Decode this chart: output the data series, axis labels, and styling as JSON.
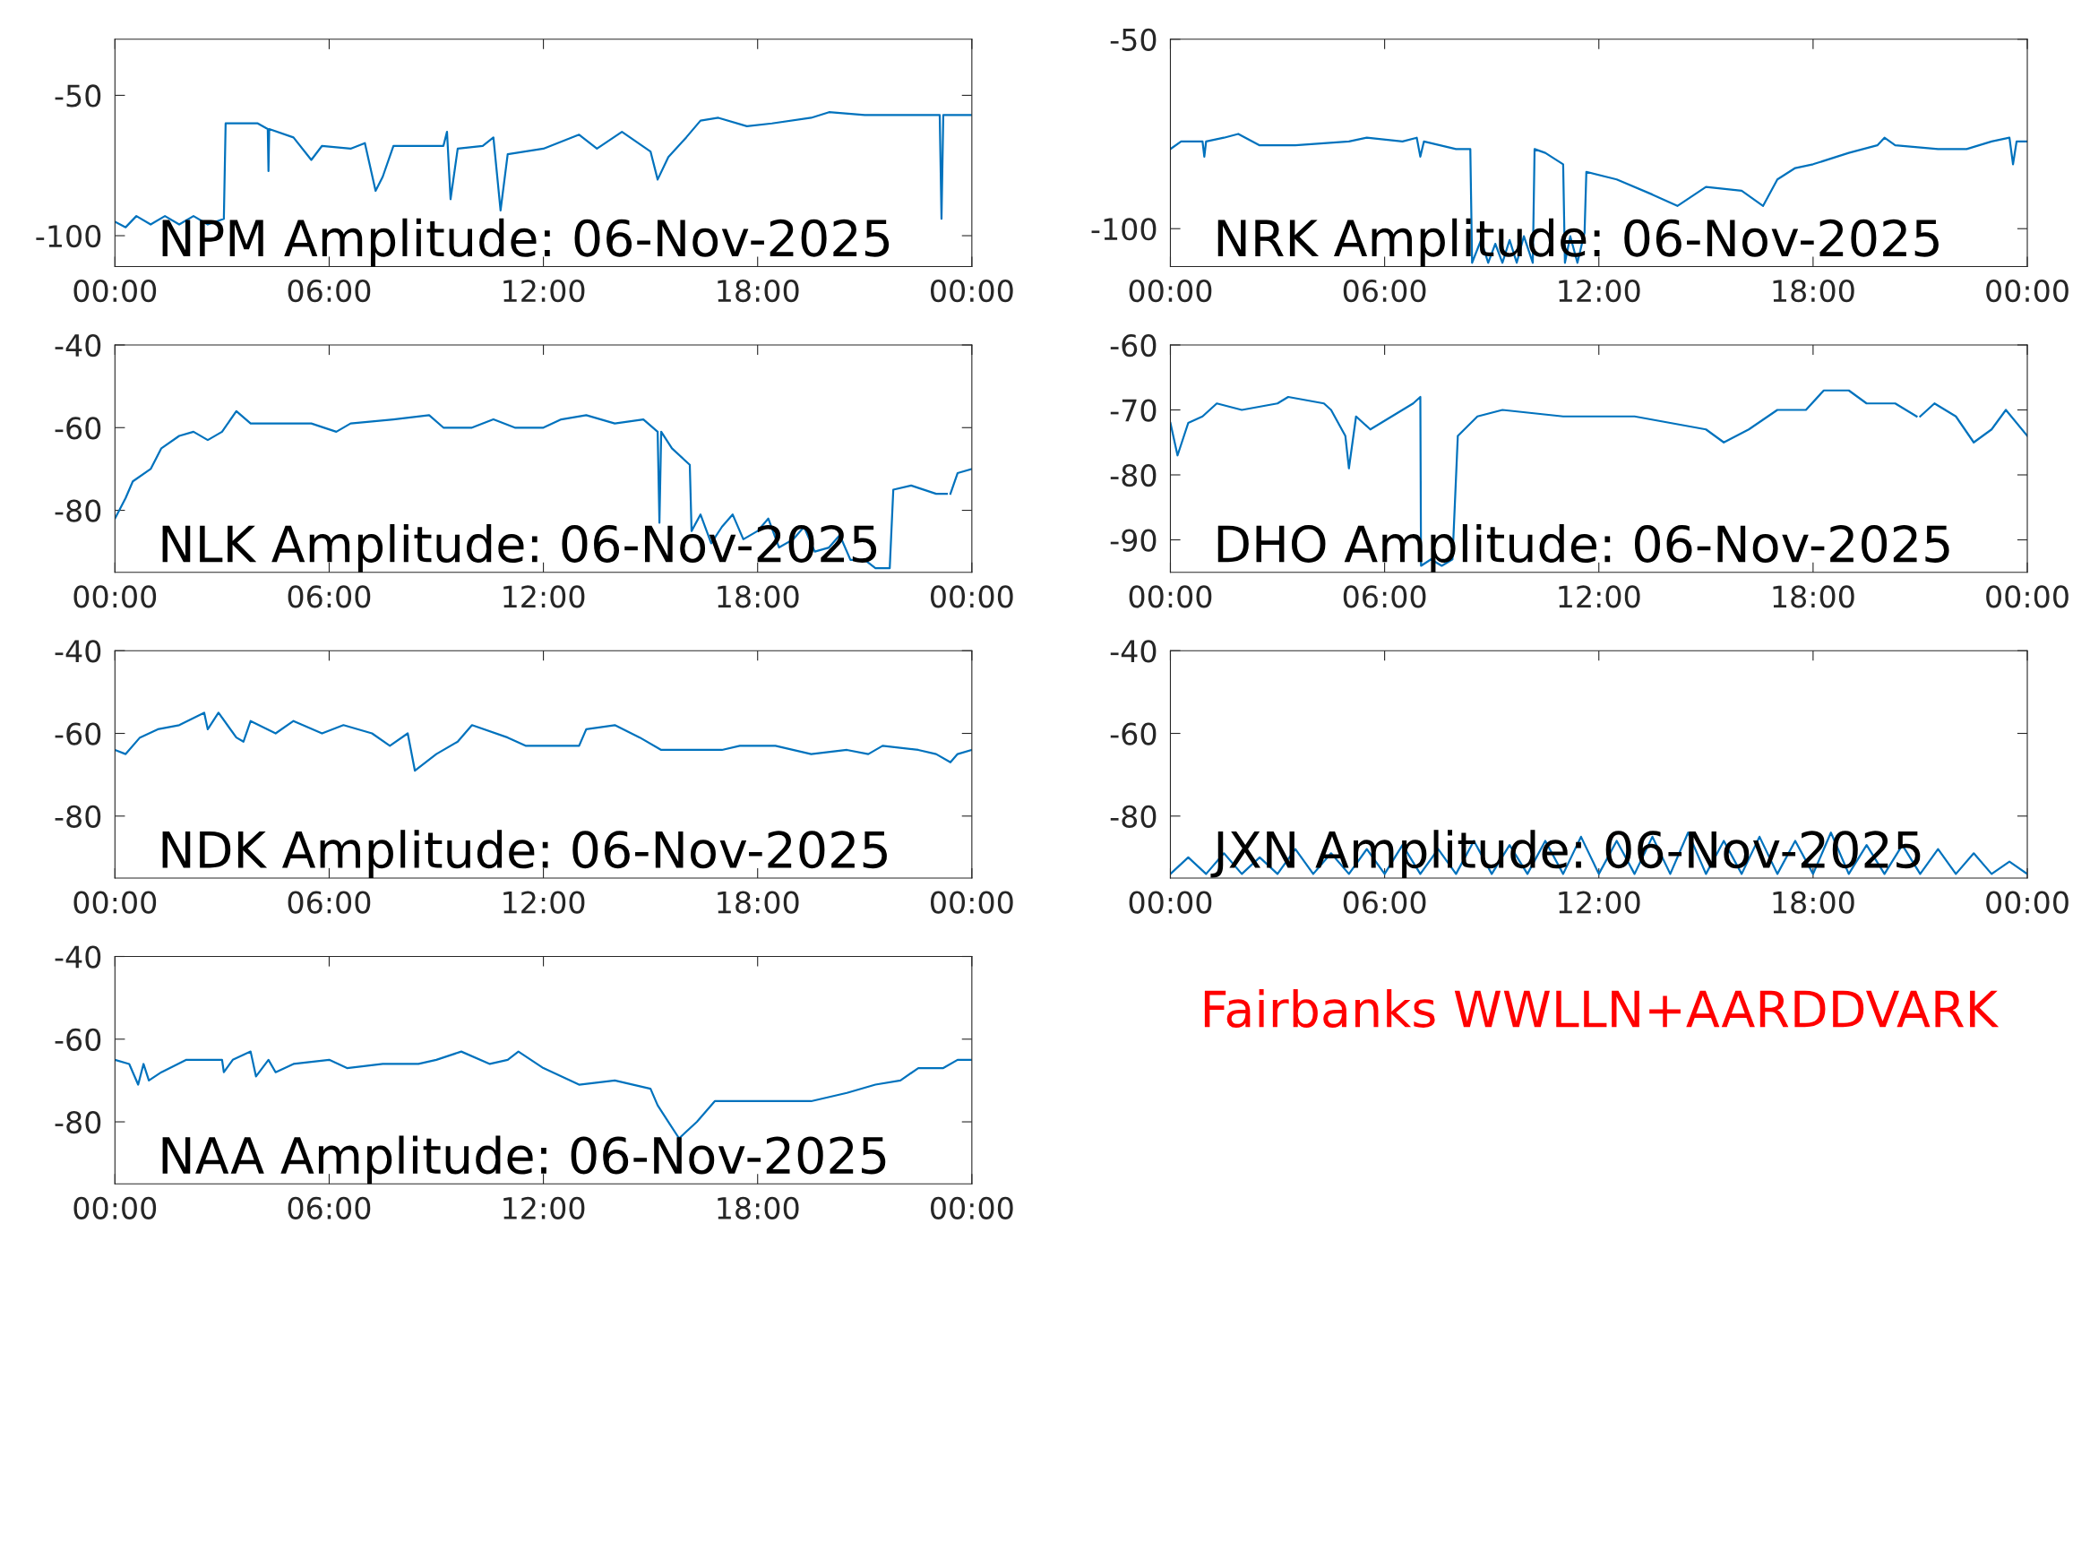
{
  "chart_data": [
    {
      "type": "line",
      "title": "NPM Amplitude: 06-Nov-2025",
      "x": [
        0,
        0.3,
        0.6,
        1,
        1.4,
        1.8,
        2.2,
        2.6,
        3.05,
        3.1,
        4.0,
        4.28,
        4.3,
        4.32,
        5.0,
        5.5,
        5.8,
        6.6,
        7.0,
        7.3,
        7.5,
        7.8,
        8.5,
        9.2,
        9.3,
        9.4,
        9.6,
        10.3,
        10.6,
        10.8,
        11.0,
        12,
        13,
        13.5,
        14.2,
        15,
        15.2,
        15.5,
        16,
        16.4,
        16.9,
        17.7,
        18.4,
        19.5,
        20,
        21,
        22,
        23.1,
        23.15,
        23.2,
        24
      ],
      "series": [
        {
          "color": "#0072bd",
          "values": [
            -95,
            -97,
            -93,
            -96,
            -93,
            -96,
            -93,
            -96,
            -94,
            -60,
            -60,
            -62,
            -77,
            -62,
            -65,
            -73,
            -68,
            -69,
            -67,
            -84,
            -79,
            -68,
            -68,
            -68,
            -63,
            -87,
            -69,
            -68,
            -65,
            -91,
            -71,
            -69,
            -64,
            -69,
            -63,
            -70,
            -80,
            -72,
            -65,
            -59,
            -58,
            -61,
            -60,
            -58,
            -56,
            -57,
            -57,
            -57,
            -94,
            -57,
            -57
          ]
        }
      ],
      "xlim": [
        0,
        24
      ],
      "xticks": [
        {
          "value": 0,
          "label": "00:00"
        },
        {
          "value": 6,
          "label": "06:00"
        },
        {
          "value": 12,
          "label": "12:00"
        },
        {
          "value": 18,
          "label": "18:00"
        },
        {
          "value": 24,
          "label": "00:00"
        }
      ],
      "ylim": [
        -111,
        -30
      ],
      "yticks": [
        -100,
        -50
      ]
    },
    {
      "type": "line",
      "title": "NRK Amplitude: 06-Nov-2025",
      "x": [
        0,
        0.3,
        0.9,
        0.95,
        1.0,
        1.5,
        1.9,
        2.5,
        3.5,
        5,
        5.5,
        6.5,
        6.9,
        7.0,
        7.1,
        8,
        8.4,
        8.45,
        8.7,
        8.9,
        9.1,
        9.3,
        9.5,
        9.7,
        9.9,
        10.15,
        10.2,
        10.5,
        11,
        11.05,
        11.2,
        11.4,
        11.6,
        11.65,
        12.5,
        13.5,
        14.2,
        15,
        16,
        16.6,
        17,
        17.5,
        18,
        19,
        19.8,
        20,
        20.3,
        21.5,
        22.3,
        23,
        23.5,
        23.6,
        23.7,
        24
      ],
      "series": [
        {
          "color": "#0072bd",
          "values": [
            -79,
            -77,
            -77,
            -81,
            -77,
            -76,
            -75,
            -78,
            -78,
            -77,
            -76,
            -77,
            -76,
            -81,
            -77,
            -79,
            -79,
            -109,
            -103,
            -109,
            -104,
            -109,
            -103,
            -109,
            -102,
            -109,
            -79,
            -80,
            -83,
            -109,
            -102,
            -109,
            -101,
            -85,
            -87,
            -91,
            -94,
            -89,
            -90,
            -94,
            -87,
            -84,
            -83,
            -80,
            -78,
            -76,
            -78,
            -79,
            -79,
            -77,
            -76,
            -83,
            -77,
            -77
          ]
        }
      ],
      "xlim": [
        0,
        24
      ],
      "xticks": [
        {
          "value": 0,
          "label": "00:00"
        },
        {
          "value": 6,
          "label": "06:00"
        },
        {
          "value": 12,
          "label": "12:00"
        },
        {
          "value": 18,
          "label": "18:00"
        },
        {
          "value": 24,
          "label": "00:00"
        }
      ],
      "ylim": [
        -110,
        -50
      ],
      "yticks": [
        -100,
        -50
      ]
    },
    {
      "type": "line",
      "title": "NLK Amplitude: 06-Nov-2025",
      "x": [
        0,
        0.3,
        0.5,
        1,
        1.3,
        1.8,
        2.2,
        2.6,
        3,
        3.4,
        3.8,
        4.5,
        5.5,
        6.2,
        6.6,
        7.8,
        8.8,
        9.2,
        10,
        10.6,
        11.2,
        12,
        12.5,
        13.2,
        14,
        14.8,
        15.2,
        15.25,
        15.3,
        15.6,
        16.1,
        16.15,
        16.4,
        16.7,
        17,
        17.3,
        17.6,
        18,
        18.3,
        18.6,
        19,
        19.3,
        19.6,
        20,
        20.3,
        20.6,
        21,
        21.3,
        21.7,
        21.8,
        22.3,
        23,
        23.3,
        23.35,
        23.4,
        23.6,
        24
      ],
      "series": [
        {
          "color": "#0072bd",
          "values": [
            -82,
            -77,
            -73,
            -70,
            -65,
            -62,
            -61,
            -63,
            -61,
            -56,
            -59,
            -59,
            -59,
            -61,
            -59,
            -58,
            -57,
            -60,
            -60,
            -58,
            -60,
            -60,
            -58,
            -57,
            -59,
            -58,
            -61,
            -83,
            -61,
            -65,
            -69,
            -85,
            -81,
            -88,
            -84,
            -81,
            -87,
            -85,
            -82,
            -89,
            -87,
            -84,
            -90,
            -89,
            -86,
            -92,
            -92,
            -94,
            -94,
            -75,
            -74,
            -76,
            -76,
            null,
            -76,
            -71,
            -70
          ]
        }
      ],
      "xlim": [
        0,
        24
      ],
      "xticks": [
        {
          "value": 0,
          "label": "00:00"
        },
        {
          "value": 6,
          "label": "06:00"
        },
        {
          "value": 12,
          "label": "12:00"
        },
        {
          "value": 18,
          "label": "18:00"
        },
        {
          "value": 24,
          "label": "00:00"
        }
      ],
      "ylim": [
        -95,
        -40
      ],
      "yticks": [
        -80,
        -60,
        -40
      ]
    },
    {
      "type": "line",
      "title": "DHO Amplitude: 06-Nov-2025",
      "x": [
        0,
        0.2,
        0.5,
        0.9,
        1.3,
        2,
        3,
        3.3,
        4.3,
        4.5,
        4.9,
        5,
        5.2,
        5.6,
        6.2,
        6.8,
        7.0,
        7.02,
        7.3,
        7.6,
        7.9,
        8.05,
        8.6,
        9.3,
        11,
        13,
        14,
        15,
        15.5,
        16.2,
        17,
        17.8,
        18.3,
        19,
        19.5,
        20.3,
        20.9,
        20.95,
        21.0,
        21.4,
        22,
        22.5,
        23,
        23.4,
        24
      ],
      "series": [
        {
          "color": "#0072bd",
          "values": [
            -72,
            -77,
            -72,
            -71,
            -69,
            -70,
            -69,
            -68,
            -69,
            -70,
            -74,
            -79,
            -71,
            -73,
            -71,
            -69,
            -68,
            -94,
            -93,
            -94,
            -93,
            -74,
            -71,
            -70,
            -71,
            -71,
            -72,
            -73,
            -75,
            -73,
            -70,
            -70,
            -67,
            -67,
            -69,
            -69,
            -71,
            null,
            -71,
            -69,
            -71,
            -75,
            -73,
            -70,
            -74
          ]
        }
      ],
      "xlim": [
        0,
        24
      ],
      "xticks": [
        {
          "value": 0,
          "label": "00:00"
        },
        {
          "value": 6,
          "label": "06:00"
        },
        {
          "value": 12,
          "label": "12:00"
        },
        {
          "value": 18,
          "label": "18:00"
        },
        {
          "value": 24,
          "label": "00:00"
        }
      ],
      "ylim": [
        -95,
        -60
      ],
      "yticks": [
        -90,
        -80,
        -70,
        -60
      ]
    },
    {
      "type": "line",
      "title": "NDK Amplitude: 06-Nov-2025",
      "x": [
        0,
        0.3,
        0.7,
        1.2,
        1.8,
        2.5,
        2.6,
        2.9,
        3.4,
        3.6,
        3.8,
        4.5,
        5,
        5.8,
        6.4,
        7.2,
        7.7,
        8.2,
        8.4,
        9,
        9.6,
        10,
        11,
        11.5,
        13,
        13.2,
        14,
        14.7,
        15.3,
        16,
        17,
        17.5,
        18.5,
        19.5,
        20.5,
        21.1,
        21.5,
        22.5,
        23,
        23.4,
        23.6,
        24
      ],
      "series": [
        {
          "color": "#0072bd",
          "values": [
            -64,
            -65,
            -61,
            -59,
            -58,
            -55,
            -59,
            -55,
            -61,
            -62,
            -57,
            -60,
            -57,
            -60,
            -58,
            -60,
            -63,
            -60,
            -69,
            -65,
            -62,
            -58,
            -61,
            -63,
            -63,
            -59,
            -58,
            -61,
            -64,
            -64,
            -64,
            -63,
            -63,
            -65,
            -64,
            -65,
            -63,
            -64,
            -65,
            -67,
            -65,
            -64
          ]
        }
      ],
      "xlim": [
        0,
        24
      ],
      "xticks": [
        {
          "value": 0,
          "label": "00:00"
        },
        {
          "value": 6,
          "label": "06:00"
        },
        {
          "value": 12,
          "label": "12:00"
        },
        {
          "value": 18,
          "label": "18:00"
        },
        {
          "value": 24,
          "label": "00:00"
        }
      ],
      "ylim": [
        -95,
        -40
      ],
      "yticks": [
        -80,
        -60,
        -40
      ]
    },
    {
      "type": "line",
      "title": "JXN Amplitude: 06-Nov-2025",
      "x": [
        0,
        0.5,
        1,
        1.5,
        2,
        2.5,
        3,
        3.5,
        4,
        4.5,
        5,
        5.5,
        6,
        6.5,
        7,
        7.5,
        8,
        8.5,
        9,
        9.5,
        10,
        10.5,
        11,
        11.5,
        12,
        12.5,
        13,
        13.5,
        14,
        14.5,
        15,
        15.5,
        16,
        16.5,
        17,
        17.5,
        18,
        18.5,
        19,
        19.5,
        20,
        20.5,
        21,
        21.5,
        22,
        22.5,
        23,
        23.5,
        24
      ],
      "series": [
        {
          "color": "#0072bd",
          "values": [
            -94,
            -90,
            -94,
            -89,
            -94,
            -90,
            -94,
            -88,
            -94,
            -89,
            -94,
            -88,
            -94,
            -87,
            -94,
            -88,
            -94,
            -86,
            -94,
            -87,
            -94,
            -86,
            -94,
            -85,
            -94,
            -86,
            -94,
            -85,
            -94,
            -84,
            -94,
            -86,
            -94,
            -85,
            -94,
            -86,
            -94,
            -84,
            -94,
            -87,
            -94,
            -87,
            -94,
            -88,
            -94,
            -89,
            -94,
            -91,
            -94
          ]
        }
      ],
      "xlim": [
        0,
        24
      ],
      "xticks": [
        {
          "value": 0,
          "label": "00:00"
        },
        {
          "value": 6,
          "label": "06:00"
        },
        {
          "value": 12,
          "label": "12:00"
        },
        {
          "value": 18,
          "label": "18:00"
        },
        {
          "value": 24,
          "label": "00:00"
        }
      ],
      "ylim": [
        -95,
        -40
      ],
      "yticks": [
        -80,
        -60,
        -40
      ]
    },
    {
      "type": "line",
      "title": "NAA Amplitude: 06-Nov-2025",
      "x": [
        0,
        0.4,
        0.65,
        0.8,
        0.95,
        1.3,
        2,
        3,
        3.05,
        3.3,
        3.8,
        3.95,
        4.3,
        4.5,
        5,
        6,
        6.5,
        7.5,
        8.5,
        9,
        9.7,
        10.5,
        11,
        11.3,
        12,
        13,
        14,
        15,
        15.2,
        15.5,
        15.8,
        16.3,
        16.8,
        17.5,
        18.5,
        19.5,
        20.5,
        21.3,
        22,
        22.5,
        23.2,
        23.6,
        24
      ],
      "series": [
        {
          "color": "#0072bd",
          "values": [
            -65,
            -66,
            -71,
            -66,
            -70,
            -68,
            -65,
            -65,
            -68,
            -65,
            -63,
            -69,
            -65,
            -68,
            -66,
            -65,
            -67,
            -66,
            -66,
            -65,
            -63,
            -66,
            -65,
            -63,
            -67,
            -71,
            -70,
            -72,
            -76,
            -80,
            -84,
            -80,
            -75,
            -75,
            -75,
            -75,
            -73,
            -71,
            -70,
            -67,
            -67,
            -65,
            -65
          ]
        }
      ],
      "xlim": [
        0,
        24
      ],
      "xticks": [
        {
          "value": 0,
          "label": "00:00"
        },
        {
          "value": 6,
          "label": "06:00"
        },
        {
          "value": 12,
          "label": "12:00"
        },
        {
          "value": 18,
          "label": "18:00"
        },
        {
          "value": 24,
          "label": "00:00"
        }
      ],
      "ylim": [
        -95,
        -40
      ],
      "yticks": [
        -80,
        -60,
        -40
      ]
    },
    {
      "type": "other",
      "title": "Fairbanks WWLLN+AARDDVARK",
      "color": "#ff0000"
    }
  ]
}
